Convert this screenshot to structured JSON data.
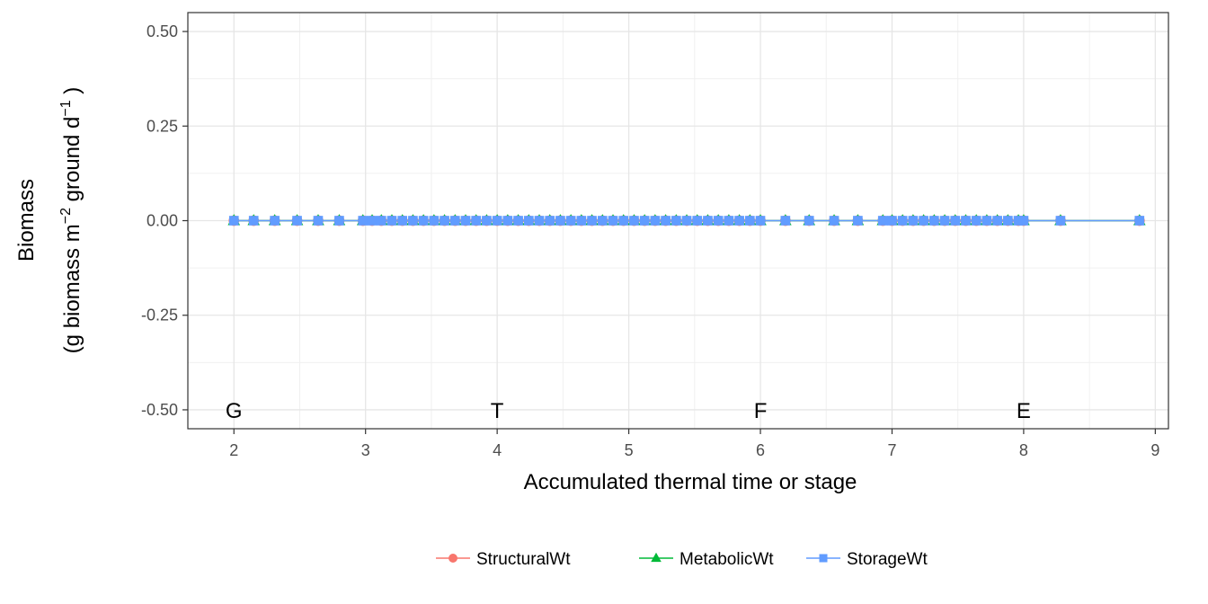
{
  "chart_data": {
    "type": "line",
    "xlabel": "Accumulated thermal time or stage",
    "ylabel_line1": "Biomass",
    "ylabel_line2": {
      "pre": "(g biomass  m",
      "sup1": "−2",
      "mid": " ground  d",
      "sup2": "−1",
      "post": " )"
    },
    "xlim": [
      1.65,
      9.1
    ],
    "ylim": [
      -0.55,
      0.55
    ],
    "x_ticks": [
      "2",
      "3",
      "4",
      "5",
      "6",
      "7",
      "8",
      "9"
    ],
    "y_ticks": [
      "0.50",
      "0.25",
      "0.00",
      "-0.25",
      "-0.50"
    ],
    "y_tick_values": [
      0.5,
      0.25,
      0.0,
      -0.25,
      -0.5
    ],
    "grid": true,
    "legend_position": "bottom",
    "stage_labels": [
      {
        "label": "G",
        "x": 2
      },
      {
        "label": "T",
        "x": 4
      },
      {
        "label": "F",
        "x": 6
      },
      {
        "label": "E",
        "x": 8
      }
    ],
    "series": [
      {
        "name": "StructuralWt",
        "color": "#F8766D",
        "marker": "circle",
        "x": [
          2.0,
          2.15,
          2.31,
          2.48,
          2.64,
          2.8,
          2.98,
          3.05,
          3.12,
          3.2,
          3.28,
          3.36,
          3.44,
          3.52,
          3.6,
          3.68,
          3.76,
          3.84,
          3.92,
          4.0,
          4.08,
          4.16,
          4.24,
          4.32,
          4.4,
          4.48,
          4.56,
          4.64,
          4.72,
          4.8,
          4.88,
          4.96,
          5.04,
          5.12,
          5.2,
          5.28,
          5.36,
          5.44,
          5.52,
          5.6,
          5.68,
          5.76,
          5.84,
          5.92,
          6.0,
          6.19,
          6.37,
          6.56,
          6.74,
          6.93,
          7.0,
          7.08,
          7.16,
          7.24,
          7.32,
          7.4,
          7.48,
          7.56,
          7.64,
          7.72,
          7.8,
          7.88,
          7.96,
          8.0,
          8.28,
          8.88
        ],
        "y": [
          0,
          0,
          0,
          0,
          0,
          0,
          0,
          0,
          0,
          0,
          0,
          0,
          0,
          0,
          0,
          0,
          0,
          0,
          0,
          0,
          0,
          0,
          0,
          0,
          0,
          0,
          0,
          0,
          0,
          0,
          0,
          0,
          0,
          0,
          0,
          0,
          0,
          0,
          0,
          0,
          0,
          0,
          0,
          0,
          0,
          0,
          0,
          0,
          0,
          0,
          0,
          0,
          0,
          0,
          0,
          0,
          0,
          0,
          0,
          0,
          0,
          0,
          0,
          0,
          0,
          0
        ]
      },
      {
        "name": "MetabolicWt",
        "color": "#00BA38",
        "marker": "triangle",
        "x": [
          2.0,
          2.15,
          2.31,
          2.48,
          2.64,
          2.8,
          2.98,
          3.05,
          3.12,
          3.2,
          3.28,
          3.36,
          3.44,
          3.52,
          3.6,
          3.68,
          3.76,
          3.84,
          3.92,
          4.0,
          4.08,
          4.16,
          4.24,
          4.32,
          4.4,
          4.48,
          4.56,
          4.64,
          4.72,
          4.8,
          4.88,
          4.96,
          5.04,
          5.12,
          5.2,
          5.28,
          5.36,
          5.44,
          5.52,
          5.6,
          5.68,
          5.76,
          5.84,
          5.92,
          6.0,
          6.19,
          6.37,
          6.56,
          6.74,
          6.93,
          7.0,
          7.08,
          7.16,
          7.24,
          7.32,
          7.4,
          7.48,
          7.56,
          7.64,
          7.72,
          7.8,
          7.88,
          7.96,
          8.0,
          8.28,
          8.88
        ],
        "y": [
          0,
          0,
          0,
          0,
          0,
          0,
          0,
          0,
          0,
          0,
          0,
          0,
          0,
          0,
          0,
          0,
          0,
          0,
          0,
          0,
          0,
          0,
          0,
          0,
          0,
          0,
          0,
          0,
          0,
          0,
          0,
          0,
          0,
          0,
          0,
          0,
          0,
          0,
          0,
          0,
          0,
          0,
          0,
          0,
          0,
          0,
          0,
          0,
          0,
          0,
          0,
          0,
          0,
          0,
          0,
          0,
          0,
          0,
          0,
          0,
          0,
          0,
          0,
          0,
          0,
          0
        ]
      },
      {
        "name": "StorageWt",
        "color": "#619CFF",
        "marker": "square",
        "x": [
          2.0,
          2.15,
          2.31,
          2.48,
          2.64,
          2.8,
          2.98,
          3.05,
          3.12,
          3.2,
          3.28,
          3.36,
          3.44,
          3.52,
          3.6,
          3.68,
          3.76,
          3.84,
          3.92,
          4.0,
          4.08,
          4.16,
          4.24,
          4.32,
          4.4,
          4.48,
          4.56,
          4.64,
          4.72,
          4.8,
          4.88,
          4.96,
          5.04,
          5.12,
          5.2,
          5.28,
          5.36,
          5.44,
          5.52,
          5.6,
          5.68,
          5.76,
          5.84,
          5.92,
          6.0,
          6.19,
          6.37,
          6.56,
          6.74,
          6.93,
          7.0,
          7.08,
          7.16,
          7.24,
          7.32,
          7.4,
          7.48,
          7.56,
          7.64,
          7.72,
          7.8,
          7.88,
          7.96,
          8.0,
          8.28,
          8.88
        ],
        "y": [
          0,
          0,
          0,
          0,
          0,
          0,
          0,
          0,
          0,
          0,
          0,
          0,
          0,
          0,
          0,
          0,
          0,
          0,
          0,
          0,
          0,
          0,
          0,
          0,
          0,
          0,
          0,
          0,
          0,
          0,
          0,
          0,
          0,
          0,
          0,
          0,
          0,
          0,
          0,
          0,
          0,
          0,
          0,
          0,
          0,
          0,
          0,
          0,
          0,
          0,
          0,
          0,
          0,
          0,
          0,
          0,
          0,
          0,
          0,
          0,
          0,
          0,
          0,
          0,
          0,
          0
        ]
      }
    ]
  }
}
